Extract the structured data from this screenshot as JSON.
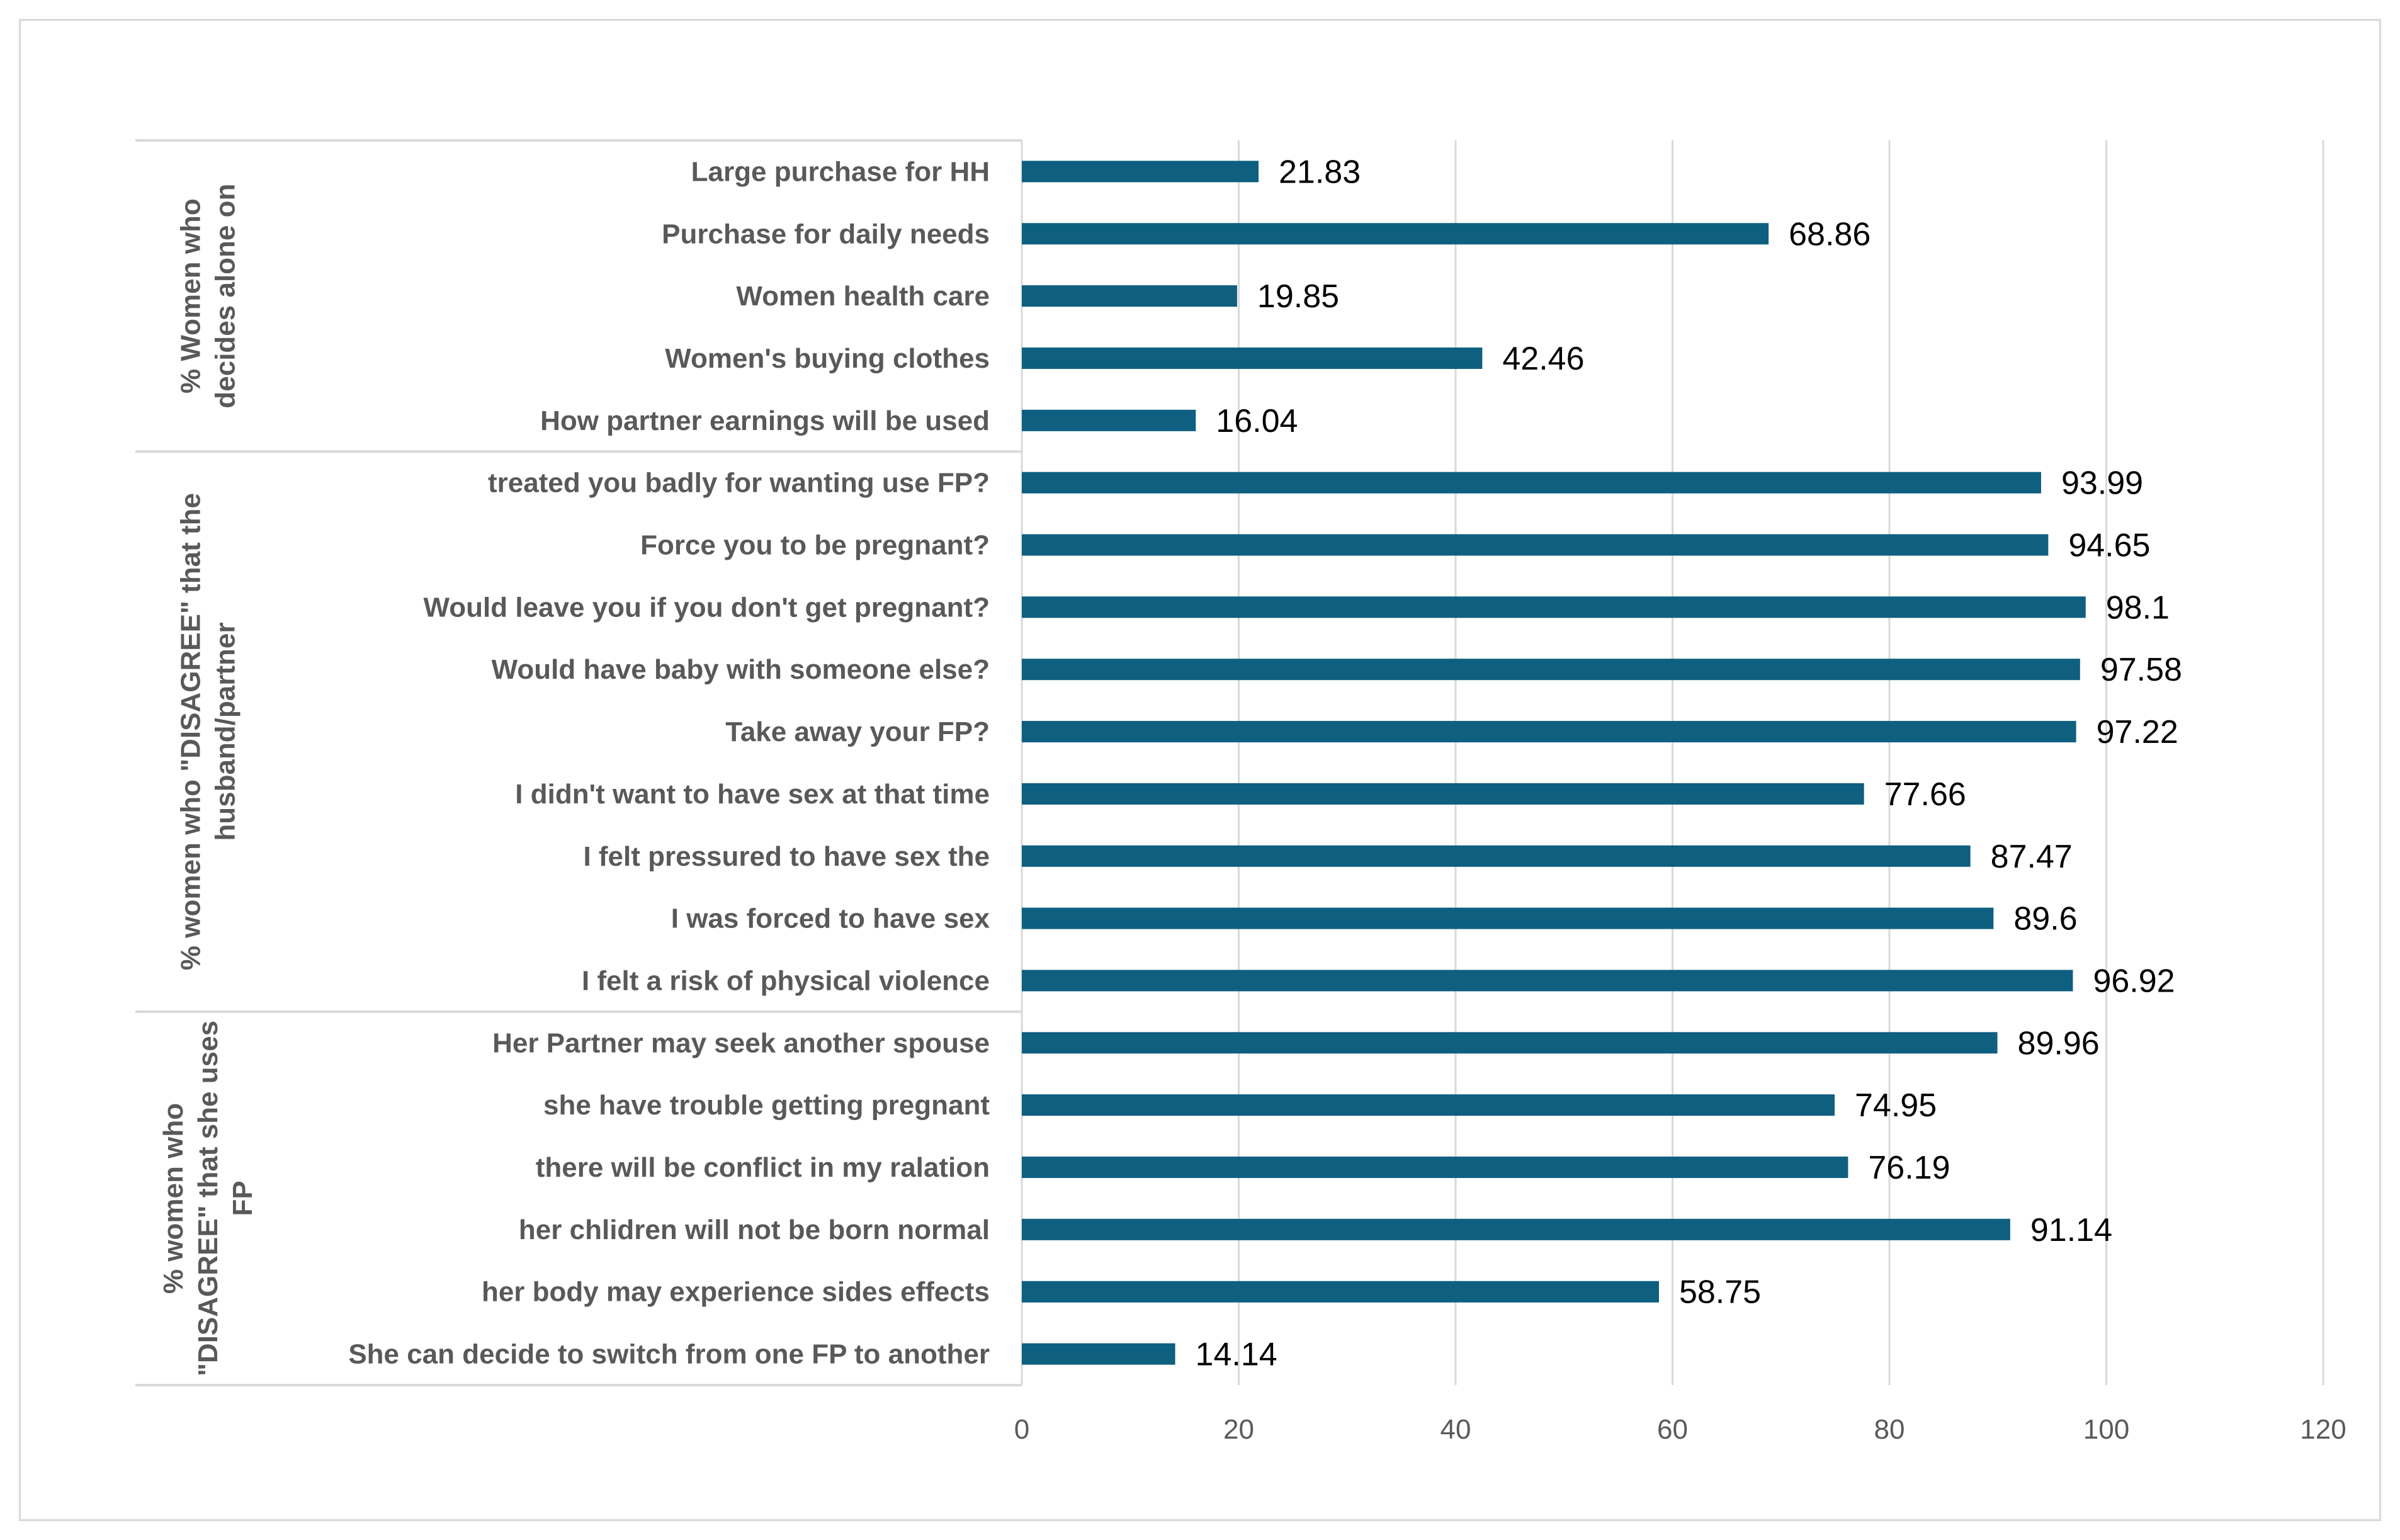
{
  "chart_data": {
    "type": "bar",
    "orientation": "horizontal",
    "title": "",
    "xlabel": "",
    "ylabel": "",
    "xlim": [
      0,
      120
    ],
    "ticks": [
      0,
      20,
      40,
      60,
      80,
      100,
      120
    ],
    "grid": true,
    "bar_color": "#0e5f80",
    "groups": [
      {
        "label_lines": [
          "% Women who",
          "decides alone on"
        ],
        "categories": [
          "Large purchase for HH",
          "Purchase for daily needs",
          "Women health care",
          "Women's buying clothes",
          "How partner earnings will be used"
        ],
        "values": [
          21.83,
          68.86,
          19.85,
          42.46,
          16.04
        ]
      },
      {
        "label_lines": [
          "% women who \"DISAGREE\" that the",
          "husband/partner"
        ],
        "categories": [
          "treated you badly for wanting use FP?",
          "Force you to be pregnant?",
          "Would leave you if you don't get pregnant?",
          "Would have baby with someone else?",
          "Take away your FP?",
          "I didn't want to have sex at that time",
          "I felt pressured to have sex the",
          "I was forced to have sex",
          "I felt a risk of physical violence"
        ],
        "values": [
          93.99,
          94.65,
          98.1,
          97.58,
          97.22,
          77.66,
          87.47,
          89.6,
          96.92
        ]
      },
      {
        "label_lines": [
          "% women who",
          "\"DISAGREE\" that she uses",
          "FP"
        ],
        "categories": [
          "Her Partner may seek another spouse",
          "she have trouble getting pregnant",
          "there will be conflict in my ralation",
          "her chlidren will not be born normal",
          "her body may experience sides effects",
          "She can decide to switch from one FP to another"
        ],
        "values": [
          89.96,
          74.95,
          76.19,
          91.14,
          58.75,
          14.14
        ]
      }
    ]
  }
}
